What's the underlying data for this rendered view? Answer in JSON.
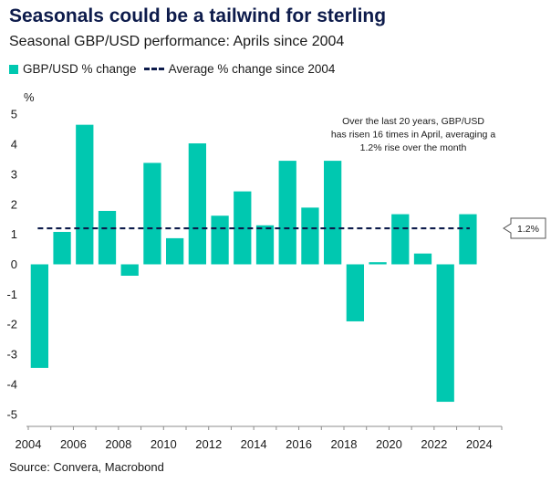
{
  "title": "Seasonals could be a tailwind for sterling",
  "subtitle": "Seasonal GBP/USD performance: Aprils since 2004",
  "source": "Source: Convera, Macrobond",
  "colors": {
    "bar": "#00c8b0",
    "avg": "#0d1b4b"
  },
  "chart_data": {
    "type": "bar",
    "title": "Seasonal GBP/USD performance: Aprils since 2004",
    "ylabel": "%",
    "xlabel": "",
    "ylim": [
      -5.4,
      5.4
    ],
    "xlim": [
      2004,
      2025
    ],
    "yticks": [
      5,
      4,
      3,
      2,
      1,
      0,
      -1,
      -2,
      -3,
      -4,
      -5
    ],
    "ytick_labels": [
      "5",
      "4",
      "3",
      "2",
      "1",
      "0",
      "-1",
      "-2",
      "-3",
      "-4",
      "-5"
    ],
    "xticks": [
      2004,
      2006,
      2008,
      2010,
      2012,
      2014,
      2016,
      2018,
      2020,
      2022,
      2024
    ],
    "xtick_labels": [
      "2004",
      "2006",
      "2008",
      "2010",
      "2012",
      "2014",
      "2016",
      "2018",
      "2020",
      "2022",
      "2024"
    ],
    "legend": [
      "GBP/USD % change",
      "Average % change since 2004"
    ],
    "series": [
      {
        "name": "GBP/USD % change",
        "x": [
          2004,
          2005,
          2006,
          2007,
          2008,
          2009,
          2010,
          2011,
          2012,
          2013,
          2014,
          2015,
          2016,
          2017,
          2018,
          2019,
          2020,
          2021,
          2022,
          2023
        ],
        "values": [
          -3.45,
          1.08,
          4.65,
          1.78,
          -0.38,
          3.38,
          0.87,
          4.03,
          1.62,
          2.43,
          1.3,
          3.45,
          1.89,
          3.45,
          -1.9,
          0.07,
          1.67,
          0.36,
          -4.58,
          1.67
        ]
      }
    ],
    "average": {
      "value": 1.2,
      "label": "1.2%"
    },
    "annotation": "Over the last 20 years, GBP/USD has risen 16 times in April, averaging a 1.2% rise over the month"
  }
}
